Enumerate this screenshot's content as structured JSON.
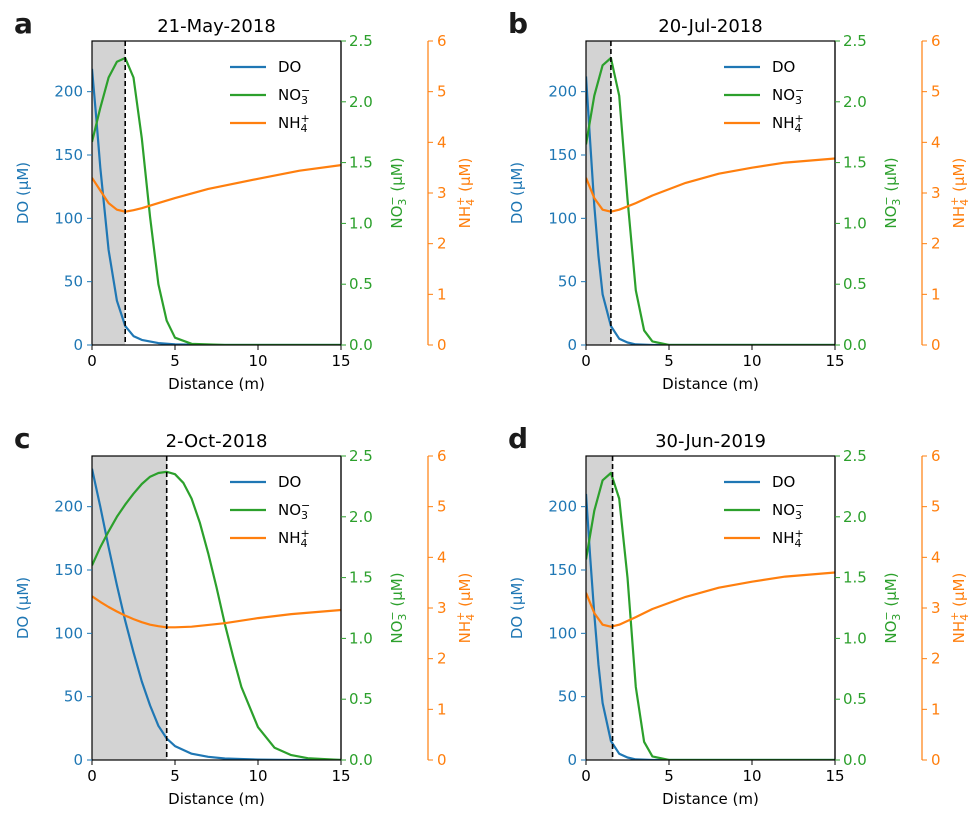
{
  "colors": {
    "DO": "#1f77b4",
    "NO3": "#2ca02c",
    "NH4": "#ff7f0e",
    "shade": "#d3d3d3"
  },
  "axis_text": {
    "xlabel": "Distance (m)",
    "ylabel_do": "DO (μM)",
    "ylabel_no3_base": "NO",
    "ylabel_no3_sub": "3",
    "ylabel_no3_sup": "−",
    "ylabel_nh4_base": "NH",
    "ylabel_nh4_sub": "4",
    "ylabel_nh4_sup": "+",
    "unit": " (μM)"
  },
  "legend": {
    "do": "DO",
    "no3_base": "NO",
    "no3_sub": "3",
    "no3_sup": "−",
    "nh4_base": "NH",
    "nh4_sub": "4",
    "nh4_sup": "+"
  },
  "chart_data": [
    {
      "type": "line",
      "panel": "a",
      "title": "21-May-2018",
      "xlabel": "Distance (m)",
      "xlim": [
        0,
        15
      ],
      "x_ticks": [
        0,
        5,
        10,
        15
      ],
      "ylim_do": [
        0,
        240
      ],
      "yticks_do": [
        0,
        50,
        100,
        150,
        200
      ],
      "ylim_no3": [
        0,
        2.5
      ],
      "yticks_no3": [
        "0.0",
        "0.5",
        "1.0",
        "1.5",
        "2.0",
        "2.5"
      ],
      "ylim_nh4": [
        0,
        6
      ],
      "yticks_nh4": [
        0,
        1,
        2,
        3,
        4,
        5,
        6
      ],
      "oxic_boundary_x": 2.0,
      "series": [
        {
          "name": "DO",
          "axis": "do",
          "x": [
            0,
            0.25,
            0.5,
            1,
            1.5,
            2,
            2.5,
            3,
            4,
            5,
            7,
            10,
            15
          ],
          "values": [
            218,
            180,
            140,
            75,
            35,
            15,
            7,
            4,
            1.5,
            0.5,
            0,
            0,
            0
          ]
        },
        {
          "name": "NO3",
          "axis": "no3",
          "x": [
            0,
            0.5,
            1,
            1.5,
            2,
            2.5,
            3,
            3.5,
            4,
            4.5,
            5,
            6,
            8,
            15
          ],
          "values": [
            1.67,
            1.95,
            2.2,
            2.33,
            2.36,
            2.2,
            1.7,
            1.05,
            0.5,
            0.2,
            0.06,
            0.01,
            0,
            0
          ]
        },
        {
          "name": "NH4",
          "axis": "nh4",
          "x": [
            0,
            0.5,
            1,
            1.5,
            2,
            2.5,
            3,
            4,
            5,
            7,
            10,
            12.5,
            15
          ],
          "values": [
            3.3,
            3.05,
            2.8,
            2.67,
            2.63,
            2.66,
            2.7,
            2.8,
            2.9,
            3.08,
            3.28,
            3.44,
            3.55
          ]
        }
      ]
    },
    {
      "type": "line",
      "panel": "b",
      "title": "20-Jul-2018",
      "xlabel": "Distance (m)",
      "xlim": [
        0,
        15
      ],
      "x_ticks": [
        0,
        5,
        10,
        15
      ],
      "ylim_do": [
        0,
        240
      ],
      "yticks_do": [
        0,
        50,
        100,
        150,
        200
      ],
      "ylim_no3": [
        0,
        2.5
      ],
      "yticks_no3": [
        "0.0",
        "0.5",
        "1.0",
        "1.5",
        "2.0",
        "2.5"
      ],
      "ylim_nh4": [
        0,
        6
      ],
      "yticks_nh4": [
        0,
        1,
        2,
        3,
        4,
        5,
        6
      ],
      "oxic_boundary_x": 1.5,
      "series": [
        {
          "name": "DO",
          "axis": "do",
          "x": [
            0,
            0.25,
            0.5,
            0.75,
            1,
            1.5,
            2,
            2.5,
            3,
            4,
            15
          ],
          "values": [
            212,
            160,
            110,
            70,
            40,
            15,
            5,
            2,
            0.5,
            0,
            0
          ]
        },
        {
          "name": "NO3",
          "axis": "no3",
          "x": [
            0,
            0.5,
            1,
            1.5,
            2,
            2.5,
            3,
            3.5,
            4,
            5,
            15
          ],
          "values": [
            1.65,
            2.05,
            2.3,
            2.36,
            2.05,
            1.2,
            0.45,
            0.12,
            0.03,
            0,
            0
          ]
        },
        {
          "name": "NH4",
          "axis": "nh4",
          "x": [
            0,
            0.5,
            1,
            1.5,
            2,
            3,
            4,
            6,
            8,
            10,
            12,
            15
          ],
          "values": [
            3.3,
            2.9,
            2.67,
            2.63,
            2.67,
            2.8,
            2.95,
            3.2,
            3.38,
            3.5,
            3.6,
            3.68
          ]
        }
      ]
    },
    {
      "type": "line",
      "panel": "c",
      "title": "2-Oct-2018",
      "xlabel": "Distance (m)",
      "xlim": [
        0,
        15
      ],
      "x_ticks": [
        0,
        5,
        10,
        15
      ],
      "ylim_do": [
        0,
        240
      ],
      "yticks_do": [
        0,
        50,
        100,
        150,
        200
      ],
      "ylim_no3": [
        0,
        2.5
      ],
      "yticks_no3": [
        "0.0",
        "0.5",
        "1.0",
        "1.5",
        "2.0",
        "2.5"
      ],
      "ylim_nh4": [
        0,
        6
      ],
      "yticks_nh4": [
        0,
        1,
        2,
        3,
        4,
        5,
        6
      ],
      "oxic_boundary_x": 4.5,
      "series": [
        {
          "name": "DO",
          "axis": "do",
          "x": [
            0,
            0.5,
            1,
            1.5,
            2,
            2.5,
            3,
            3.5,
            4,
            4.5,
            5,
            6,
            7,
            8,
            10,
            12,
            15
          ],
          "values": [
            230,
            200,
            168,
            138,
            110,
            85,
            62,
            43,
            27,
            17,
            11,
            5,
            2.5,
            1.2,
            0.3,
            0,
            0
          ]
        },
        {
          "name": "NO3",
          "axis": "no3",
          "x": [
            0,
            0.5,
            1,
            1.5,
            2,
            2.5,
            3,
            3.5,
            4,
            4.5,
            5,
            5.5,
            6,
            6.5,
            7,
            7.5,
            8,
            8.5,
            9,
            10,
            11,
            12,
            13,
            15
          ],
          "values": [
            1.6,
            1.75,
            1.88,
            2.0,
            2.1,
            2.19,
            2.27,
            2.33,
            2.36,
            2.37,
            2.35,
            2.28,
            2.15,
            1.95,
            1.7,
            1.42,
            1.12,
            0.85,
            0.6,
            0.27,
            0.1,
            0.04,
            0.015,
            0
          ]
        },
        {
          "name": "NH4",
          "axis": "nh4",
          "x": [
            0,
            0.5,
            1,
            1.5,
            2,
            2.5,
            3,
            3.5,
            4,
            4.5,
            5,
            6,
            8,
            10,
            12,
            15
          ],
          "values": [
            3.23,
            3.12,
            3.02,
            2.93,
            2.85,
            2.78,
            2.72,
            2.67,
            2.64,
            2.62,
            2.62,
            2.63,
            2.7,
            2.8,
            2.88,
            2.96
          ]
        }
      ]
    },
    {
      "type": "line",
      "panel": "d",
      "title": "30-Jun-2019",
      "xlabel": "Distance (m)",
      "xlim": [
        0,
        15
      ],
      "x_ticks": [
        0,
        5,
        10,
        15
      ],
      "ylim_do": [
        0,
        240
      ],
      "yticks_do": [
        0,
        50,
        100,
        150,
        200
      ],
      "ylim_no3": [
        0,
        2.5
      ],
      "yticks_no3": [
        "0.0",
        "0.5",
        "1.0",
        "1.5",
        "2.0",
        "2.5"
      ],
      "ylim_nh4": [
        0,
        6
      ],
      "yticks_nh4": [
        0,
        1,
        2,
        3,
        4,
        5,
        6
      ],
      "oxic_boundary_x": 1.6,
      "series": [
        {
          "name": "DO",
          "axis": "do",
          "x": [
            0,
            0.25,
            0.5,
            0.75,
            1,
            1.5,
            2,
            2.5,
            3,
            4,
            15
          ],
          "values": [
            210,
            160,
            115,
            75,
            45,
            15,
            5,
            2,
            0.5,
            0,
            0
          ]
        },
        {
          "name": "NO3",
          "axis": "no3",
          "x": [
            0,
            0.5,
            1,
            1.5,
            2,
            2.5,
            3,
            3.5,
            4,
            5,
            15
          ],
          "values": [
            1.65,
            2.05,
            2.3,
            2.36,
            2.15,
            1.5,
            0.6,
            0.15,
            0.03,
            0,
            0
          ]
        },
        {
          "name": "NH4",
          "axis": "nh4",
          "x": [
            0,
            0.5,
            1,
            1.5,
            2,
            3,
            4,
            6,
            8,
            10,
            12,
            15
          ],
          "values": [
            3.3,
            2.9,
            2.67,
            2.63,
            2.67,
            2.82,
            2.98,
            3.22,
            3.4,
            3.52,
            3.62,
            3.7
          ]
        }
      ]
    }
  ]
}
